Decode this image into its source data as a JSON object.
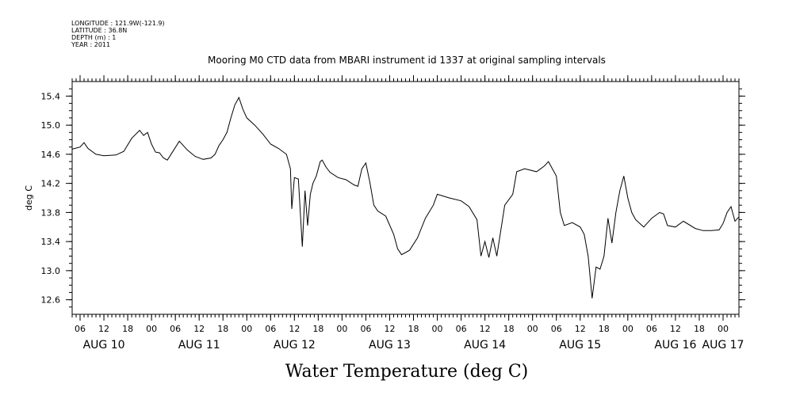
{
  "header": {
    "longitude": "LONGITUDE : 121.9W(-121.9)",
    "latitude": "LATITUDE : 36.8N",
    "depth": "DEPTH (m) : 1",
    "year": "YEAR : 2011"
  },
  "chart_data": {
    "type": "line",
    "title": "Mooring M0 CTD data from MBARI instrument id 1337 at original sampling intervals",
    "xlabel": "Water Temperature (deg C)",
    "ylabel": "deg C",
    "ylim": [
      12.4,
      15.6
    ],
    "yticks": [
      12.6,
      13.0,
      13.4,
      13.8,
      14.2,
      14.6,
      15.0,
      15.4
    ],
    "ytick_labels": [
      "12.6",
      "13.0",
      "13.4",
      "13.8",
      "14.2",
      "14.6",
      "15.0",
      "15.4"
    ],
    "xlim": [
      "2011-08-10 04:00",
      "2011-08-17 04:00"
    ],
    "hour_tick_labels": [
      "06",
      "12",
      "18",
      "00",
      "06",
      "12",
      "18",
      "00",
      "06",
      "12",
      "18",
      "00",
      "06",
      "12",
      "18",
      "00",
      "06",
      "12",
      "18",
      "00",
      "06",
      "12",
      "18",
      "00",
      "06",
      "12",
      "18",
      "00"
    ],
    "hour_tick_times": [
      "2011-08-10 06:00",
      "2011-08-10 12:00",
      "2011-08-10 18:00",
      "2011-08-11 00:00",
      "2011-08-11 06:00",
      "2011-08-11 12:00",
      "2011-08-11 18:00",
      "2011-08-12 00:00",
      "2011-08-12 06:00",
      "2011-08-12 12:00",
      "2011-08-12 18:00",
      "2011-08-13 00:00",
      "2011-08-13 06:00",
      "2011-08-13 12:00",
      "2011-08-13 18:00",
      "2011-08-14 00:00",
      "2011-08-14 06:00",
      "2011-08-14 12:00",
      "2011-08-14 18:00",
      "2011-08-15 00:00",
      "2011-08-15 06:00",
      "2011-08-15 12:00",
      "2011-08-15 18:00",
      "2011-08-16 00:00",
      "2011-08-16 06:00",
      "2011-08-16 12:00",
      "2011-08-16 18:00",
      "2011-08-17 00:00"
    ],
    "day_labels": [
      "AUG 10",
      "AUG 11",
      "AUG 12",
      "AUG 13",
      "AUG 14",
      "AUG 15",
      "AUG 16",
      "AUG 17"
    ],
    "day_label_times": [
      "2011-08-10 12:00",
      "2011-08-11 12:00",
      "2011-08-12 12:00",
      "2011-08-13 12:00",
      "2011-08-14 12:00",
      "2011-08-15 12:00",
      "2011-08-16 12:00",
      "2011-08-17 00:00"
    ],
    "grid": false,
    "line_color": "#000000",
    "series": [
      {
        "x": [
          "2011-08-10 04:00",
          "2011-08-10 06:00",
          "2011-08-10 07:00",
          "2011-08-10 08:00",
          "2011-08-10 10:00",
          "2011-08-10 12:00",
          "2011-08-10 15:00",
          "2011-08-10 17:00",
          "2011-08-10 19:00",
          "2011-08-10 21:00",
          "2011-08-10 22:00",
          "2011-08-10 23:00",
          "2011-08-11 00:00",
          "2011-08-11 01:00",
          "2011-08-11 02:00",
          "2011-08-11 03:00",
          "2011-08-11 04:00",
          "2011-08-11 07:00",
          "2011-08-11 09:00",
          "2011-08-11 11:00",
          "2011-08-11 13:00",
          "2011-08-11 15:00",
          "2011-08-11 16:00",
          "2011-08-11 17:00",
          "2011-08-11 18:00",
          "2011-08-11 19:00",
          "2011-08-11 20:00",
          "2011-08-11 21:00",
          "2011-08-11 22:00",
          "2011-08-11 23:00",
          "2011-08-12 00:00",
          "2011-08-12 02:00",
          "2011-08-12 04:00",
          "2011-08-12 06:00",
          "2011-08-12 08:00",
          "2011-08-12 10:00",
          "2011-08-12 11:00",
          "2011-08-12 11:20",
          "2011-08-12 12:00",
          "2011-08-12 13:00",
          "2011-08-12 14:00",
          "2011-08-12 14:40",
          "2011-08-12 15:20",
          "2011-08-12 16:00",
          "2011-08-12 16:40",
          "2011-08-12 17:30",
          "2011-08-12 18:30",
          "2011-08-12 19:00",
          "2011-08-12 20:00",
          "2011-08-12 21:00",
          "2011-08-12 23:00",
          "2011-08-13 01:00",
          "2011-08-13 03:00",
          "2011-08-13 04:00",
          "2011-08-13 05:00",
          "2011-08-13 06:00",
          "2011-08-13 07:00",
          "2011-08-13 08:00",
          "2011-08-13 09:00",
          "2011-08-13 11:00",
          "2011-08-13 13:00",
          "2011-08-13 14:00",
          "2011-08-13 15:00",
          "2011-08-13 17:00",
          "2011-08-13 19:00",
          "2011-08-13 21:00",
          "2011-08-13 23:00",
          "2011-08-14 00:00",
          "2011-08-14 03:00",
          "2011-08-14 06:00",
          "2011-08-14 08:00",
          "2011-08-14 10:00",
          "2011-08-14 11:00",
          "2011-08-14 12:00",
          "2011-08-14 13:00",
          "2011-08-14 14:00",
          "2011-08-14 15:00",
          "2011-08-14 16:00",
          "2011-08-14 17:00",
          "2011-08-14 19:00",
          "2011-08-14 20:00",
          "2011-08-14 22:00",
          "2011-08-15 01:00",
          "2011-08-15 03:00",
          "2011-08-15 04:00",
          "2011-08-15 06:00",
          "2011-08-15 07:00",
          "2011-08-15 08:00",
          "2011-08-15 10:00",
          "2011-08-15 12:00",
          "2011-08-15 13:00",
          "2011-08-15 14:00",
          "2011-08-15 15:00",
          "2011-08-15 16:00",
          "2011-08-15 17:00",
          "2011-08-15 18:00",
          "2011-08-15 19:00",
          "2011-08-15 20:00",
          "2011-08-15 21:00",
          "2011-08-15 22:00",
          "2011-08-15 23:00",
          "2011-08-16 00:00",
          "2011-08-16 01:00",
          "2011-08-16 02:00",
          "2011-08-16 04:00",
          "2011-08-16 06:00",
          "2011-08-16 08:00",
          "2011-08-16 09:00",
          "2011-08-16 10:00",
          "2011-08-16 12:00",
          "2011-08-16 14:00",
          "2011-08-16 17:00",
          "2011-08-16 19:00",
          "2011-08-16 21:00",
          "2011-08-16 23:00",
          "2011-08-17 00:00",
          "2011-08-17 01:00",
          "2011-08-17 02:00",
          "2011-08-17 03:00",
          "2011-08-17 04:00"
        ],
        "y": [
          14.67,
          14.7,
          14.76,
          14.68,
          14.6,
          14.58,
          14.59,
          14.64,
          14.82,
          14.93,
          14.86,
          14.9,
          14.74,
          14.63,
          14.62,
          14.55,
          14.52,
          14.78,
          14.66,
          14.57,
          14.53,
          14.55,
          14.6,
          14.72,
          14.8,
          14.9,
          15.1,
          15.28,
          15.38,
          15.22,
          15.1,
          15.0,
          14.88,
          14.74,
          14.68,
          14.6,
          14.4,
          13.85,
          14.28,
          14.26,
          13.33,
          14.1,
          13.62,
          14.05,
          14.2,
          14.3,
          14.5,
          14.52,
          14.42,
          14.35,
          14.28,
          14.25,
          14.18,
          14.16,
          14.4,
          14.48,
          14.22,
          13.9,
          13.82,
          13.75,
          13.5,
          13.3,
          13.22,
          13.28,
          13.45,
          13.72,
          13.9,
          14.05,
          14.0,
          13.96,
          13.88,
          13.7,
          13.2,
          13.4,
          13.18,
          13.45,
          13.2,
          13.55,
          13.9,
          14.05,
          14.36,
          14.4,
          14.36,
          14.44,
          14.5,
          14.3,
          13.8,
          13.62,
          13.66,
          13.6,
          13.5,
          13.2,
          12.62,
          13.05,
          13.02,
          13.2,
          13.72,
          13.38,
          13.8,
          14.1,
          14.3,
          14.0,
          13.8,
          13.7,
          13.6,
          13.72,
          13.8,
          13.78,
          13.62,
          13.6,
          13.68,
          13.58,
          13.55,
          13.55,
          13.56,
          13.65,
          13.8,
          13.88,
          13.68,
          13.74
        ]
      }
    ]
  }
}
